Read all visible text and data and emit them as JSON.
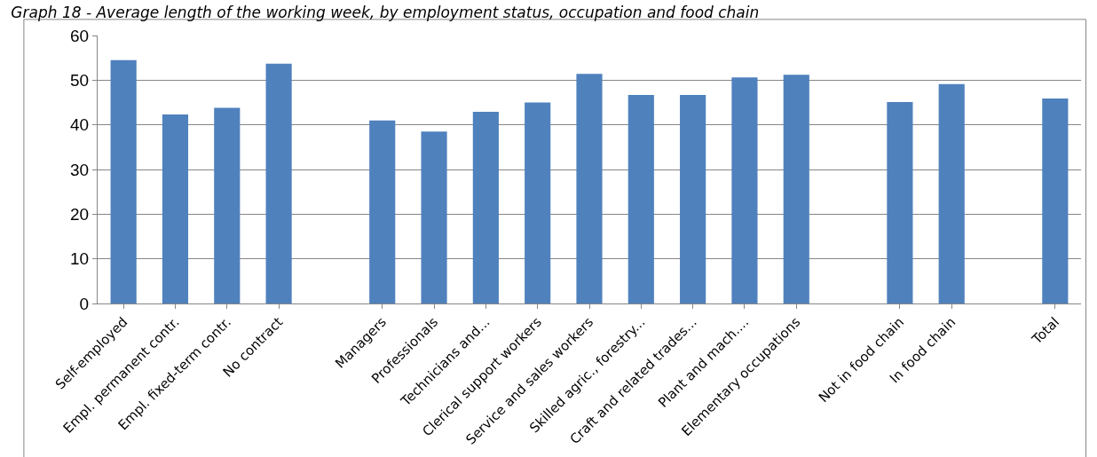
{
  "chart_data": {
    "type": "bar",
    "title": "Graph 18 - Average length of the working week, by employment status, occupation and food chain",
    "categories": [
      "Self-employed",
      "Empl. permanent contr.",
      "Empl. fixed-term contr.",
      "No contract",
      null,
      "Managers",
      "Professionals",
      "Technicians and...",
      "Clerical support workers",
      "Service and sales workers",
      "Skilled agric., forestry...",
      "Craft and related trades...",
      "Plant and mach....",
      "Elementary occupations",
      null,
      "Not in food chain",
      "In food chain",
      null,
      "Total"
    ],
    "values": [
      54.5,
      42.3,
      43.8,
      53.7,
      null,
      41.0,
      38.5,
      42.9,
      45.0,
      51.4,
      46.7,
      46.7,
      50.6,
      51.2,
      null,
      45.1,
      49.1,
      null,
      45.9
    ],
    "color": "#4f81bd",
    "ylim": [
      0,
      60
    ],
    "yticks": [
      0,
      10,
      20,
      30,
      40,
      50,
      60
    ],
    "grid": "y"
  }
}
